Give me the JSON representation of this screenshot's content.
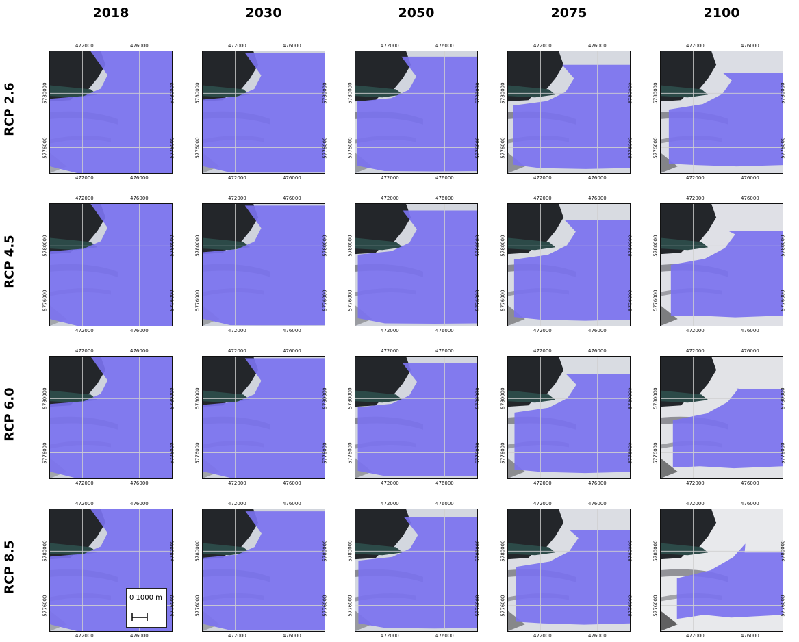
{
  "columns": [
    "2018",
    "2030",
    "2050",
    "2075",
    "2100"
  ],
  "rows": [
    "RCP 2.6",
    "RCP 4.5",
    "RCP 6.0",
    "RCP 8.5"
  ],
  "ticks": {
    "x_left": "472000",
    "x_right": "476000",
    "y_upper": "5780000",
    "y_lower": "5776000"
  },
  "scale_bar": {
    "label": "0  1000 m",
    "length_m": 1000
  },
  "colors": {
    "glacier_overlay": "#7b72ef",
    "rock_dark": "#23262a",
    "water": "#2c4a48",
    "snow": "#e9e9ec",
    "grid_line": "#d0d0d0"
  },
  "glacier_extent_level": [
    [
      0.0,
      0.03,
      0.1,
      0.25,
      0.4
    ],
    [
      0.0,
      0.03,
      0.12,
      0.3,
      0.5
    ],
    [
      0.0,
      0.03,
      0.12,
      0.32,
      0.6
    ],
    [
      0.0,
      0.04,
      0.15,
      0.38,
      0.8
    ]
  ]
}
